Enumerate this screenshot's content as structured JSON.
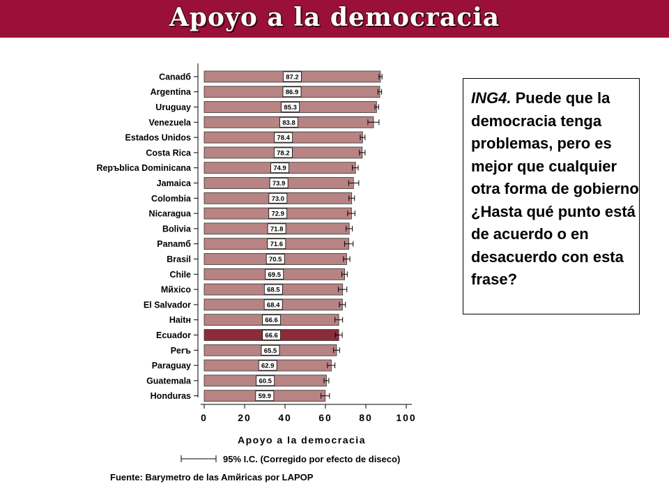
{
  "header": {
    "title": "Apoyo a la democracia"
  },
  "question": {
    "code": "ING4.",
    "text": "Puede que la democracia tenga problemas, pero es mejor que cualquier otra forma de gobierno ¿Hasta qué punto está de acuerdo o en desacuerdo con esta frase?"
  },
  "source": "Fuente: Barymetro de las Amйricas por LAPOP",
  "chart_data": {
    "type": "bar",
    "orientation": "horizontal",
    "xlabel": "Apoyo a la democracia",
    "xlim": [
      0,
      100
    ],
    "xticks": [
      0,
      20,
      40,
      60,
      80,
      100
    ],
    "legend": "95% I.C. (Corregido por efecto de diseco)",
    "legend_placement": "bottom",
    "grid": false,
    "colors": {
      "bar": "#b88383",
      "highlight": "#8c2c3b"
    },
    "highlight_category": "Ecuador",
    "categories": [
      "Canadб",
      "Argentina",
      "Uruguay",
      "Venezuela",
      "Estados Unidos",
      "Costa Rica",
      "Repъblica Dominicana",
      "Jamaica",
      "Colombia",
      "Nicaragua",
      "Bolivia",
      "Panamб",
      "Brasil",
      "Chile",
      "Mйxico",
      "El Salvador",
      "Haitн",
      "Ecuador",
      "Perъ",
      "Paraguay",
      "Guatemala",
      "Honduras"
    ],
    "values": [
      87.2,
      86.9,
      85.3,
      83.8,
      78.4,
      78.2,
      74.9,
      73.9,
      73.0,
      72.9,
      71.8,
      71.6,
      70.5,
      69.5,
      68.5,
      68.4,
      66.6,
      66.6,
      65.5,
      62.9,
      60.5,
      59.9
    ],
    "value_labels": [
      "87.2",
      "86.9",
      "85.3",
      "83.8",
      "78.4",
      "78.2",
      "74.9",
      "73.9",
      "73.0",
      "72.9",
      "71.8",
      "71.6",
      "70.5",
      "69.5",
      "68.5",
      "68.4",
      "66.6",
      "66.6",
      "65.5",
      "62.9",
      "60.5",
      "59.9"
    ],
    "ci_low": [
      86.5,
      86.0,
      84.5,
      81.0,
      77.2,
      76.8,
      73.3,
      71.5,
      71.6,
      71.0,
      70.2,
      69.5,
      68.9,
      68.1,
      66.4,
      66.9,
      64.7,
      64.9,
      64.0,
      61.0,
      59.3,
      57.8
    ],
    "ci_high": [
      88.0,
      87.8,
      86.3,
      86.5,
      79.6,
      79.6,
      76.2,
      76.5,
      74.4,
      74.6,
      73.3,
      73.7,
      72.1,
      70.8,
      70.6,
      69.9,
      68.5,
      68.3,
      67.0,
      64.7,
      61.7,
      62.0
    ]
  }
}
